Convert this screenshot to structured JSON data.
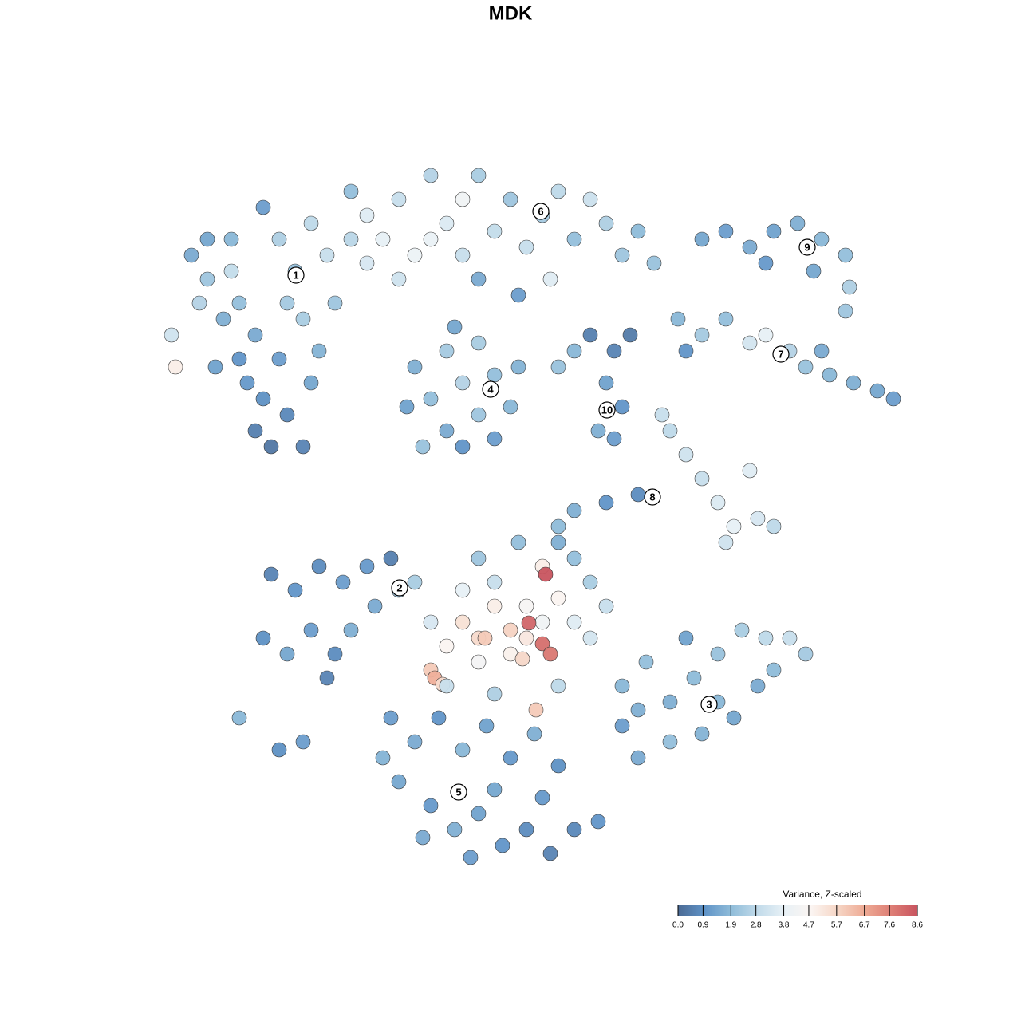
{
  "chart_data": {
    "type": "scatter",
    "title": "MDK",
    "xlim": [
      0,
      1280
    ],
    "ylim": [
      1280,
      0
    ],
    "colorbar": {
      "title": "Variance, Z-scaled",
      "lim": [
        0,
        8.6
      ],
      "ticks": [
        {
          "value": 0,
          "label": "0.0"
        },
        0.9,
        1.9,
        2.8,
        3.8,
        4.7,
        5.7,
        6.7,
        7.6,
        8.6
      ],
      "colors": [
        "#4b6a94",
        "#5f93c7",
        "#8fbcd9",
        "#c2dbea",
        "#e8f1f6",
        "#fbf5f2",
        "#f6d6c6",
        "#eeab95",
        "#de7f76",
        "#c8545f"
      ]
    },
    "clusters": [
      {
        "label": "1",
        "x": 371,
        "y": 345
      },
      {
        "label": "6",
        "x": 678,
        "y": 265
      },
      {
        "label": "9",
        "x": 1012,
        "y": 310
      },
      {
        "label": "7",
        "x": 979,
        "y": 444
      },
      {
        "label": "4",
        "x": 615,
        "y": 488
      },
      {
        "label": "10",
        "x": 761,
        "y": 514
      },
      {
        "label": "8",
        "x": 818,
        "y": 623
      },
      {
        "label": "2",
        "x": 501,
        "y": 737
      },
      {
        "label": "3",
        "x": 889,
        "y": 883
      },
      {
        "label": "5",
        "x": 575,
        "y": 993
      }
    ],
    "points": [
      [
        240,
        320,
        1.5
      ],
      [
        260,
        350,
        2.2
      ],
      [
        290,
        300,
        1.8
      ],
      [
        300,
        380,
        2.0
      ],
      [
        330,
        260,
        1.2
      ],
      [
        350,
        300,
        2.5
      ],
      [
        370,
        340,
        2.0
      ],
      [
        390,
        280,
        2.8
      ],
      [
        410,
        320,
        3.0
      ],
      [
        320,
        420,
        1.5
      ],
      [
        350,
        450,
        1.2
      ],
      [
        380,
        400,
        2.4
      ],
      [
        300,
        450,
        1.0
      ],
      [
        330,
        500,
        0.9
      ],
      [
        360,
        520,
        0.7
      ],
      [
        340,
        560,
        0.3
      ],
      [
        320,
        540,
        0.5
      ],
      [
        390,
        480,
        1.4
      ],
      [
        280,
        400,
        1.6
      ],
      [
        250,
        380,
        2.6
      ],
      [
        215,
        420,
        3.2
      ],
      [
        220,
        460,
        5.0
      ],
      [
        270,
        460,
        1.3
      ],
      [
        400,
        440,
        1.7
      ],
      [
        420,
        380,
        2.2
      ],
      [
        290,
        340,
        2.9
      ],
      [
        360,
        380,
        2.3
      ],
      [
        310,
        480,
        1.1
      ],
      [
        260,
        300,
        1.4
      ],
      [
        380,
        560,
        0.6
      ],
      [
        440,
        240,
        2.0
      ],
      [
        460,
        270,
        3.6
      ],
      [
        480,
        300,
        3.8
      ],
      [
        500,
        250,
        3.0
      ],
      [
        520,
        320,
        4.0
      ],
      [
        540,
        220,
        2.6
      ],
      [
        560,
        280,
        3.5
      ],
      [
        580,
        250,
        4.2
      ],
      [
        600,
        220,
        2.4
      ],
      [
        620,
        290,
        2.9
      ],
      [
        640,
        250,
        2.2
      ],
      [
        660,
        310,
        3.0
      ],
      [
        680,
        270,
        2.3
      ],
      [
        700,
        240,
        2.8
      ],
      [
        720,
        300,
        2.0
      ],
      [
        740,
        250,
        3.1
      ],
      [
        760,
        280,
        2.5
      ],
      [
        780,
        320,
        2.2
      ],
      [
        800,
        290,
        1.9
      ],
      [
        820,
        330,
        2.1
      ],
      [
        460,
        330,
        3.4
      ],
      [
        500,
        350,
        3.2
      ],
      [
        540,
        300,
        3.9
      ],
      [
        580,
        320,
        3.0
      ],
      [
        440,
        300,
        2.7
      ],
      [
        690,
        350,
        3.6
      ],
      [
        650,
        370,
        1.2
      ],
      [
        600,
        350,
        1.5
      ],
      [
        520,
        460,
        1.6
      ],
      [
        540,
        500,
        2.0
      ],
      [
        560,
        440,
        2.3
      ],
      [
        580,
        480,
        2.6
      ],
      [
        600,
        430,
        2.4
      ],
      [
        620,
        470,
        2.0
      ],
      [
        640,
        510,
        1.8
      ],
      [
        600,
        520,
        2.2
      ],
      [
        560,
        540,
        1.5
      ],
      [
        530,
        560,
        2.1
      ],
      [
        580,
        560,
        1.0
      ],
      [
        620,
        550,
        1.2
      ],
      [
        510,
        510,
        1.3
      ],
      [
        650,
        460,
        1.7
      ],
      [
        570,
        410,
        1.4
      ],
      [
        740,
        420,
        0.5
      ],
      [
        770,
        440,
        0.6
      ],
      [
        790,
        420,
        0.4
      ],
      [
        760,
        480,
        1.3
      ],
      [
        780,
        510,
        1.0
      ],
      [
        750,
        540,
        1.6
      ],
      [
        770,
        550,
        1.2
      ],
      [
        700,
        460,
        2.1
      ],
      [
        720,
        440,
        1.8
      ],
      [
        880,
        300,
        1.4
      ],
      [
        910,
        290,
        1.2
      ],
      [
        940,
        310,
        1.5
      ],
      [
        970,
        290,
        1.3
      ],
      [
        1000,
        280,
        1.6
      ],
      [
        1030,
        300,
        1.8
      ],
      [
        1060,
        320,
        2.0
      ],
      [
        1020,
        340,
        1.4
      ],
      [
        960,
        330,
        1.1
      ],
      [
        1065,
        360,
        2.5
      ],
      [
        1060,
        390,
        2.2
      ],
      [
        850,
        400,
        1.8
      ],
      [
        880,
        420,
        2.3
      ],
      [
        910,
        400,
        2.0
      ],
      [
        940,
        430,
        3.3
      ],
      [
        960,
        420,
        3.8
      ],
      [
        990,
        440,
        2.6
      ],
      [
        1010,
        460,
        2.1
      ],
      [
        1040,
        470,
        1.8
      ],
      [
        1070,
        480,
        1.6
      ],
      [
        1100,
        490,
        1.4
      ],
      [
        1120,
        500,
        1.2
      ],
      [
        1030,
        440,
        1.5
      ],
      [
        860,
        440,
        1.0
      ],
      [
        840,
        540,
        2.8
      ],
      [
        860,
        570,
        3.2
      ],
      [
        880,
        600,
        3.0
      ],
      [
        900,
        630,
        3.5
      ],
      [
        920,
        660,
        3.8
      ],
      [
        950,
        650,
        3.4
      ],
      [
        970,
        660,
        2.8
      ],
      [
        940,
        590,
        3.6
      ],
      [
        910,
        680,
        3.2
      ],
      [
        830,
        520,
        3.0
      ],
      [
        800,
        620,
        0.8
      ],
      [
        760,
        630,
        1.0
      ],
      [
        720,
        640,
        1.6
      ],
      [
        700,
        660,
        1.9
      ],
      [
        340,
        720,
        0.6
      ],
      [
        370,
        740,
        1.0
      ],
      [
        400,
        710,
        0.8
      ],
      [
        430,
        730,
        1.2
      ],
      [
        460,
        710,
        1.1
      ],
      [
        490,
        700,
        0.5
      ],
      [
        330,
        800,
        0.9
      ],
      [
        360,
        820,
        1.4
      ],
      [
        390,
        790,
        1.2
      ],
      [
        420,
        820,
        0.8
      ],
      [
        440,
        790,
        1.6
      ],
      [
        410,
        850,
        0.6
      ],
      [
        470,
        760,
        1.5
      ],
      [
        500,
        740,
        2.2
      ],
      [
        300,
        900,
        1.8
      ],
      [
        350,
        940,
        0.9
      ],
      [
        380,
        930,
        1.2
      ],
      [
        540,
        780,
        3.4
      ],
      [
        560,
        810,
        4.8
      ],
      [
        580,
        780,
        5.4
      ],
      [
        600,
        800,
        5.6
      ],
      [
        620,
        760,
        5.0
      ],
      [
        640,
        790,
        5.8
      ],
      [
        660,
        760,
        4.6
      ],
      [
        680,
        780,
        4.2
      ],
      [
        700,
        750,
        4.8
      ],
      [
        720,
        780,
        3.6
      ],
      [
        600,
        830,
        4.4
      ],
      [
        640,
        820,
        4.9
      ],
      [
        660,
        800,
        5.2
      ],
      [
        580,
        740,
        3.8
      ],
      [
        620,
        730,
        3.0
      ],
      [
        680,
        710,
        5.0
      ],
      [
        684,
        720,
        8.6
      ],
      [
        663,
        781,
        8.2
      ],
      [
        680,
        807,
        8.0
      ],
      [
        690,
        820,
        7.8
      ],
      [
        540,
        840,
        6.0
      ],
      [
        545,
        850,
        6.6
      ],
      [
        555,
        858,
        5.6
      ],
      [
        608,
        800,
        6.0
      ],
      [
        655,
        826,
        5.7
      ],
      [
        672,
        890,
        6.0
      ],
      [
        740,
        800,
        3.3
      ],
      [
        760,
        760,
        3.0
      ],
      [
        720,
        700,
        2.0
      ],
      [
        740,
        730,
        2.4
      ],
      [
        600,
        700,
        2.2
      ],
      [
        560,
        860,
        3.0
      ],
      [
        620,
        870,
        2.5
      ],
      [
        700,
        860,
        2.8
      ],
      [
        520,
        730,
        2.4
      ],
      [
        650,
        680,
        2.0
      ],
      [
        700,
        680,
        1.6
      ],
      [
        780,
        860,
        1.8
      ],
      [
        810,
        830,
        2.0
      ],
      [
        840,
        880,
        1.6
      ],
      [
        870,
        850,
        1.9
      ],
      [
        900,
        820,
        2.1
      ],
      [
        930,
        790,
        2.4
      ],
      [
        960,
        800,
        2.8
      ],
      [
        990,
        800,
        3.0
      ],
      [
        1010,
        820,
        2.3
      ],
      [
        950,
        860,
        1.5
      ],
      [
        920,
        900,
        1.4
      ],
      [
        880,
        920,
        1.7
      ],
      [
        840,
        930,
        2.0
      ],
      [
        800,
        950,
        1.5
      ],
      [
        780,
        910,
        1.2
      ],
      [
        900,
        880,
        1.8
      ],
      [
        860,
        800,
        1.3
      ],
      [
        970,
        840,
        1.9
      ],
      [
        800,
        890,
        1.6
      ],
      [
        490,
        900,
        1.2
      ],
      [
        520,
        930,
        1.5
      ],
      [
        550,
        900,
        1.0
      ],
      [
        580,
        940,
        1.8
      ],
      [
        610,
        910,
        1.3
      ],
      [
        640,
        950,
        1.1
      ],
      [
        670,
        920,
        1.6
      ],
      [
        700,
        960,
        0.9
      ],
      [
        500,
        980,
        1.4
      ],
      [
        540,
        1010,
        1.1
      ],
      [
        570,
        1040,
        1.6
      ],
      [
        600,
        1020,
        1.3
      ],
      [
        630,
        1060,
        1.0
      ],
      [
        660,
        1040,
        0.8
      ],
      [
        690,
        1070,
        0.6
      ],
      [
        720,
        1040,
        0.7
      ],
      [
        750,
        1030,
        1.0
      ],
      [
        590,
        1075,
        1.2
      ],
      [
        530,
        1050,
        1.5
      ],
      [
        480,
        950,
        1.7
      ],
      [
        620,
        990,
        1.4
      ],
      [
        680,
        1000,
        1.1
      ]
    ]
  }
}
